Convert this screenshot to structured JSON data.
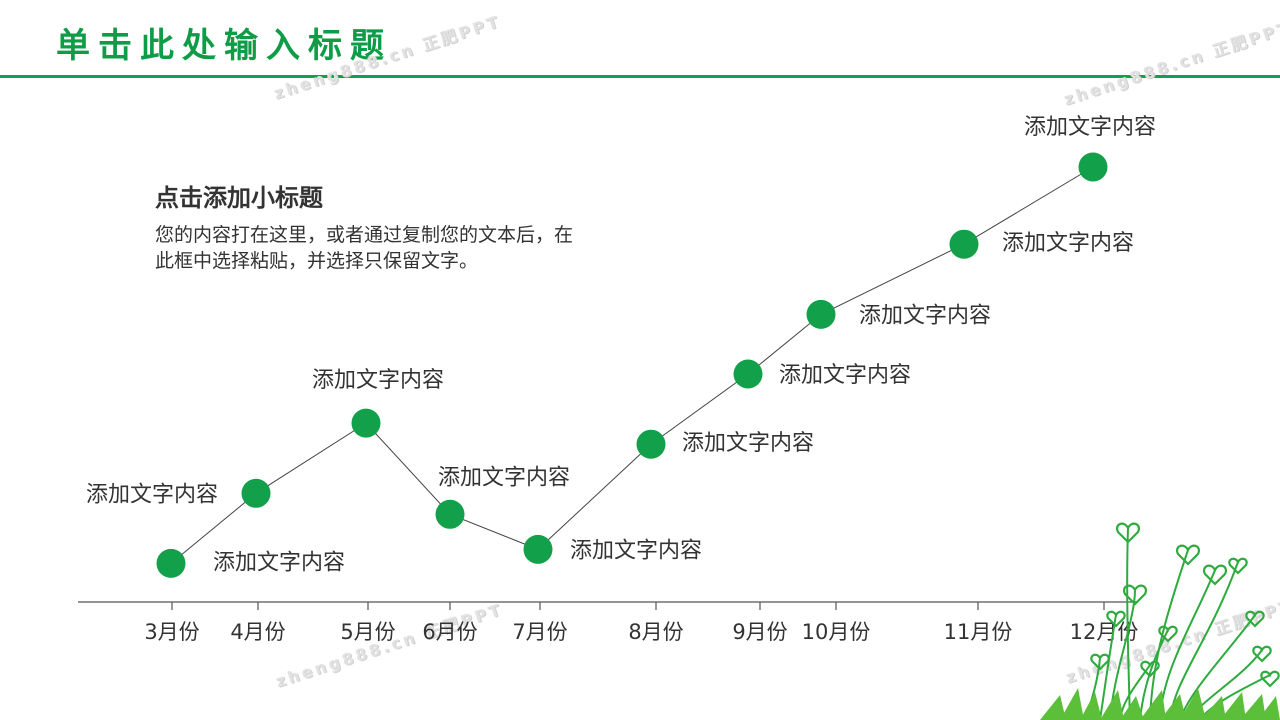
{
  "header": {
    "title": "单击此处输入标题"
  },
  "watermarks": [
    "zheng888.cn 正肥PPT",
    "zheng888.cn 正肥PPT",
    "zheng888.cn 正肥PPT",
    "zheng888.cn 正肥PPT"
  ],
  "content": {
    "subtitle": "点击添加小标题",
    "body": "您的内容打在这里，或者通过复制您的文本后，在此框中选择粘贴，并选择只保留文字。"
  },
  "colors": {
    "accent": "#0f9c47",
    "marker": "#12a04a",
    "line": "#444444",
    "axis": "#555555"
  },
  "chart_data": {
    "type": "line",
    "categories": [
      "3月份",
      "4月份",
      "5月份",
      "6月份",
      "7月份",
      "8月份",
      "9月份",
      "10月份",
      "11月份",
      "12月份"
    ],
    "values": [
      1.1,
      3.1,
      5.1,
      2.5,
      1.5,
      4.5,
      6.5,
      8.2,
      10.2,
      12.4
    ],
    "point_labels": [
      "添加文字内容",
      "添加文字内容",
      "添加文字内容",
      "添加文字内容",
      "添加文字内容",
      "添加文字内容",
      "添加文字内容",
      "添加文字内容",
      "添加文字内容",
      "添加文字内容"
    ],
    "ylim": [
      0,
      13
    ],
    "grid": false,
    "legend": "none"
  }
}
